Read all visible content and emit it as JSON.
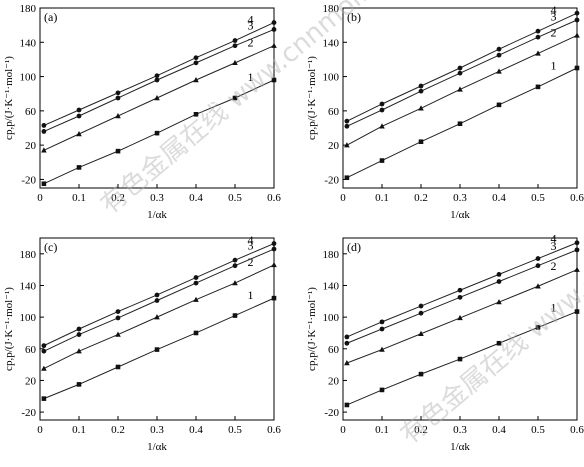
{
  "watermark": "有色金属在线 www.cnnmol.com",
  "colors": {
    "axis": "#000000",
    "line": "#222222",
    "marker": "#111111",
    "watermark": "#b0b0b0"
  },
  "chart_data": [
    {
      "type": "line",
      "panel": "(a)",
      "x": [
        0.01,
        0.1,
        0.2,
        0.3,
        0.4,
        0.5,
        0.6
      ],
      "xlim": [
        0,
        0.6
      ],
      "ylim": [
        -30,
        180
      ],
      "xticks": [
        0,
        0.1,
        0.2,
        0.3,
        0.4,
        0.5,
        0.6
      ],
      "yticks": [
        -20,
        20,
        60,
        100,
        140,
        180
      ],
      "xlabel": "1/αk",
      "ylabel": "cp,p/(J·K⁻¹·mol⁻¹)",
      "grid": false,
      "series": [
        {
          "name": "1",
          "marker": "square",
          "values": [
            -25,
            -6,
            13,
            34,
            56,
            75,
            96
          ]
        },
        {
          "name": "2",
          "marker": "triangle",
          "values": [
            14,
            33,
            54,
            75,
            96,
            116,
            136
          ]
        },
        {
          "name": "3",
          "marker": "circle",
          "values": [
            36,
            54,
            75,
            96,
            116,
            136,
            155
          ]
        },
        {
          "name": "4",
          "marker": "circle",
          "values": [
            43,
            61,
            81,
            101,
            122,
            142,
            163
          ]
        }
      ]
    },
    {
      "type": "line",
      "panel": "(b)",
      "x": [
        0.01,
        0.1,
        0.2,
        0.3,
        0.4,
        0.5,
        0.6
      ],
      "xlim": [
        0,
        0.6
      ],
      "ylim": [
        -30,
        180
      ],
      "xticks": [
        0,
        0.1,
        0.2,
        0.3,
        0.4,
        0.5,
        0.6
      ],
      "yticks": [
        -20,
        20,
        60,
        100,
        140,
        180
      ],
      "xlabel": "1/αk",
      "ylabel": "cp,p/(J·K⁻¹·mol⁻¹)",
      "grid": false,
      "series": [
        {
          "name": "1",
          "marker": "square",
          "values": [
            -18,
            2,
            24,
            45,
            67,
            88,
            110
          ]
        },
        {
          "name": "2",
          "marker": "triangle",
          "values": [
            20,
            42,
            63,
            85,
            106,
            127,
            148
          ]
        },
        {
          "name": "3",
          "marker": "circle",
          "values": [
            42,
            61,
            83,
            104,
            125,
            146,
            166
          ]
        },
        {
          "name": "4",
          "marker": "circle",
          "values": [
            48,
            68,
            89,
            110,
            132,
            153,
            174
          ]
        }
      ]
    },
    {
      "type": "line",
      "panel": "(c)",
      "x": [
        0.01,
        0.1,
        0.2,
        0.3,
        0.4,
        0.5,
        0.6
      ],
      "xlim": [
        0,
        0.6
      ],
      "ylim": [
        -30,
        200
      ],
      "xticks": [
        0,
        0.1,
        0.2,
        0.3,
        0.4,
        0.5,
        0.6
      ],
      "yticks": [
        -20,
        20,
        60,
        100,
        140,
        180
      ],
      "xlabel": "1/αk",
      "ylabel": "cp,p/(J·K⁻¹·mol⁻¹)",
      "grid": false,
      "series": [
        {
          "name": "1",
          "marker": "square",
          "values": [
            -3,
            15,
            37,
            59,
            80,
            102,
            124
          ]
        },
        {
          "name": "2",
          "marker": "triangle",
          "values": [
            35,
            57,
            78,
            100,
            122,
            143,
            166
          ]
        },
        {
          "name": "3",
          "marker": "circle",
          "values": [
            57,
            78,
            99,
            121,
            143,
            165,
            186
          ]
        },
        {
          "name": "4",
          "marker": "circle",
          "values": [
            64,
            85,
            107,
            128,
            150,
            172,
            193
          ]
        }
      ]
    },
    {
      "type": "line",
      "panel": "(d)",
      "x": [
        0.01,
        0.1,
        0.2,
        0.3,
        0.4,
        0.5,
        0.6
      ],
      "xlim": [
        0,
        0.6
      ],
      "ylim": [
        -30,
        200
      ],
      "xticks": [
        0,
        0.1,
        0.2,
        0.3,
        0.4,
        0.5,
        0.6
      ],
      "yticks": [
        -20,
        20,
        60,
        100,
        140,
        180
      ],
      "xlabel": "1/αk",
      "ylabel": "cp,p/(J·K⁻¹·mol⁻¹)",
      "grid": false,
      "series": [
        {
          "name": "1",
          "marker": "square",
          "values": [
            -11,
            8,
            28,
            47,
            67,
            87,
            107
          ]
        },
        {
          "name": "2",
          "marker": "triangle",
          "values": [
            42,
            59,
            79,
            99,
            119,
            139,
            160
          ]
        },
        {
          "name": "3",
          "marker": "circle",
          "values": [
            67,
            85,
            105,
            125,
            145,
            165,
            185
          ]
        },
        {
          "name": "4",
          "marker": "circle",
          "values": [
            75,
            94,
            114,
            134,
            154,
            174,
            194
          ]
        }
      ]
    }
  ]
}
